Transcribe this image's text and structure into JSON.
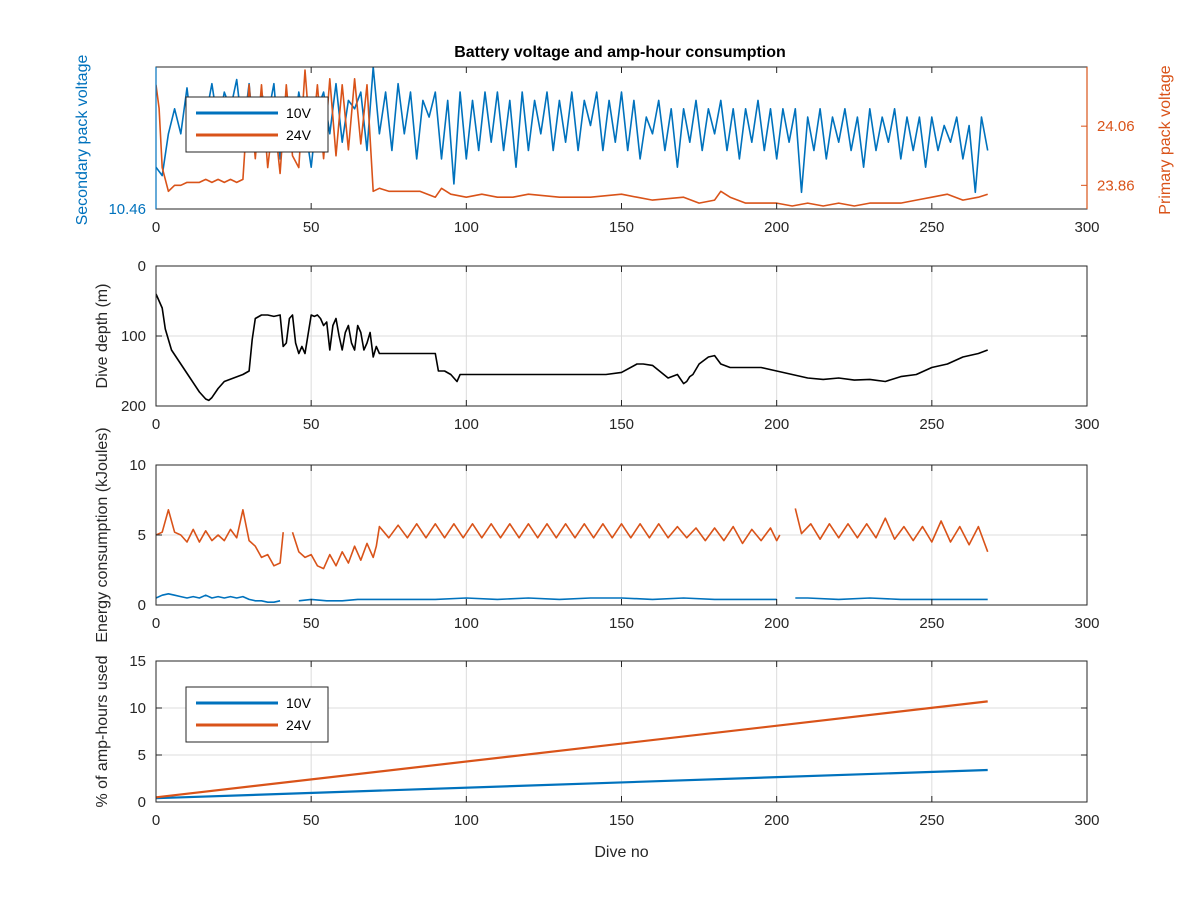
{
  "colors": {
    "c10": "#0072BD",
    "c24": "#D95319",
    "depth": "#000000",
    "axis": "#262626",
    "grid": "#dcdcdc"
  },
  "chart_data": [
    {
      "type": "line",
      "title": "Battery voltage and amp-hour consumption",
      "xlabel": "",
      "ylabel": "Secondary pack voltage",
      "ylabel_right": "Primary pack voltage",
      "xlim": [
        0,
        300
      ],
      "xticks": [
        "0",
        "50",
        "100",
        "150",
        "200",
        "250",
        "300"
      ],
      "yticks_left": [
        "10.46"
      ],
      "yticks_right": [
        "24.06",
        "23.86"
      ],
      "ylim_left": [
        10.46,
        10.8
      ],
      "ylim_right": [
        23.78,
        24.26
      ],
      "legend": {
        "placement": "top-left",
        "entries": [
          "10V",
          "24V"
        ]
      },
      "grid": false,
      "series": [
        {
          "name": "10V",
          "axis": "left",
          "color": "#0072BD",
          "x": [
            0,
            2,
            4,
            6,
            8,
            10,
            12,
            14,
            16,
            18,
            20,
            22,
            24,
            26,
            28,
            30,
            32,
            34,
            36,
            38,
            40,
            42,
            44,
            46,
            48,
            50,
            52,
            54,
            56,
            58,
            60,
            62,
            64,
            66,
            68,
            70,
            72,
            74,
            76,
            78,
            80,
            82,
            84,
            86,
            88,
            90,
            92,
            94,
            96,
            98,
            100,
            102,
            104,
            106,
            108,
            110,
            112,
            114,
            116,
            118,
            120,
            122,
            124,
            126,
            128,
            130,
            132,
            134,
            136,
            138,
            140,
            142,
            144,
            146,
            148,
            150,
            152,
            154,
            156,
            158,
            160,
            162,
            164,
            166,
            168,
            170,
            172,
            174,
            176,
            178,
            180,
            182,
            184,
            186,
            188,
            190,
            192,
            194,
            196,
            198,
            200,
            202,
            204,
            206,
            208,
            210,
            212,
            214,
            216,
            218,
            220,
            222,
            224,
            226,
            228,
            230,
            232,
            234,
            236,
            238,
            240,
            242,
            244,
            246,
            248,
            250,
            252,
            254,
            256,
            258,
            260,
            262,
            264,
            266,
            268
          ],
          "y": [
            10.56,
            10.54,
            10.64,
            10.7,
            10.64,
            10.75,
            10.62,
            10.72,
            10.68,
            10.76,
            10.66,
            10.74,
            10.7,
            10.77,
            10.64,
            10.76,
            10.6,
            10.74,
            10.68,
            10.76,
            10.58,
            10.72,
            10.62,
            10.74,
            10.66,
            10.56,
            10.7,
            10.74,
            10.64,
            10.76,
            10.62,
            10.72,
            10.7,
            10.74,
            10.6,
            10.8,
            10.64,
            10.74,
            10.6,
            10.76,
            10.64,
            10.74,
            10.58,
            10.72,
            10.68,
            10.74,
            10.58,
            10.72,
            10.52,
            10.74,
            10.58,
            10.72,
            10.6,
            10.74,
            10.62,
            10.74,
            10.6,
            10.72,
            10.56,
            10.74,
            10.6,
            10.72,
            10.64,
            10.74,
            10.6,
            10.72,
            10.62,
            10.74,
            10.6,
            10.72,
            10.66,
            10.74,
            10.6,
            10.72,
            10.62,
            10.74,
            10.6,
            10.72,
            10.58,
            10.68,
            10.64,
            10.72,
            10.6,
            10.7,
            10.56,
            10.7,
            10.62,
            10.72,
            10.6,
            10.7,
            10.64,
            10.72,
            10.6,
            10.7,
            10.58,
            10.7,
            10.62,
            10.72,
            10.6,
            10.7,
            10.58,
            10.7,
            10.62,
            10.7,
            10.5,
            10.68,
            10.6,
            10.7,
            10.58,
            10.68,
            10.62,
            10.7,
            10.6,
            10.68,
            10.56,
            10.7,
            10.6,
            10.68,
            10.62,
            10.7,
            10.58,
            10.68,
            10.6,
            10.68,
            10.56,
            10.68,
            10.6,
            10.66,
            10.62,
            10.68,
            10.58,
            10.66,
            10.5,
            10.68,
            10.6
          ]
        },
        {
          "name": "24V",
          "axis": "right",
          "color": "#D95319",
          "x": [
            0,
            1,
            2,
            4,
            6,
            8,
            10,
            12,
            14,
            16,
            18,
            20,
            22,
            24,
            26,
            28,
            30,
            32,
            34,
            36,
            38,
            40,
            42,
            44,
            46,
            48,
            50,
            52,
            54,
            56,
            58,
            60,
            62,
            64,
            66,
            68,
            70,
            72,
            75,
            80,
            85,
            90,
            92,
            95,
            100,
            105,
            110,
            115,
            120,
            130,
            140,
            150,
            155,
            160,
            170,
            175,
            180,
            182,
            185,
            190,
            195,
            200,
            205,
            210,
            215,
            220,
            225,
            230,
            235,
            240,
            245,
            250,
            255,
            260,
            265,
            268
          ],
          "y": [
            24.2,
            24.12,
            23.92,
            23.84,
            23.86,
            23.86,
            23.87,
            23.87,
            23.87,
            23.88,
            23.87,
            23.88,
            23.87,
            23.88,
            23.87,
            23.88,
            24.2,
            23.95,
            24.2,
            23.92,
            24.1,
            23.9,
            24.2,
            23.96,
            23.92,
            24.25,
            23.98,
            24.2,
            23.95,
            24.22,
            23.96,
            24.2,
            23.98,
            24.22,
            24.0,
            24.2,
            23.84,
            23.85,
            23.84,
            23.84,
            23.84,
            23.82,
            23.85,
            23.83,
            23.82,
            23.83,
            23.82,
            23.82,
            23.83,
            23.82,
            23.82,
            23.83,
            23.82,
            23.81,
            23.82,
            23.8,
            23.81,
            23.84,
            23.82,
            23.8,
            23.8,
            23.8,
            23.79,
            23.8,
            23.79,
            23.8,
            23.79,
            23.8,
            23.8,
            23.8,
            23.81,
            23.82,
            23.83,
            23.81,
            23.82,
            23.83
          ]
        }
      ]
    },
    {
      "type": "line",
      "title": "",
      "xlabel": "",
      "ylabel": "Dive depth (m)",
      "xlim": [
        0,
        300
      ],
      "ylim": [
        0,
        200
      ],
      "y_reversed": true,
      "xticks": [
        "0",
        "50",
        "100",
        "150",
        "200",
        "250",
        "300"
      ],
      "yticks": [
        "0",
        "100",
        "200"
      ],
      "grid": true,
      "series": [
        {
          "name": "",
          "color": "#000000",
          "x": [
            0,
            1,
            2,
            3,
            5,
            8,
            11,
            14,
            16,
            17,
            18,
            20,
            22,
            25,
            28,
            30,
            31,
            32,
            34,
            36,
            38,
            40,
            41,
            42,
            43,
            44,
            45,
            46,
            47,
            48,
            50,
            51,
            52,
            53,
            54,
            55,
            56,
            57,
            58,
            59,
            60,
            61,
            62,
            63,
            64,
            65,
            66,
            67,
            68,
            69,
            70,
            71,
            72,
            75,
            80,
            85,
            90,
            91,
            92,
            93,
            95,
            97,
            98,
            100,
            105,
            110,
            115,
            120,
            125,
            130,
            135,
            140,
            145,
            150,
            155,
            157,
            160,
            165,
            168,
            170,
            171,
            172,
            173,
            175,
            178,
            180,
            182,
            185,
            190,
            195,
            200,
            205,
            210,
            215,
            220,
            225,
            230,
            235,
            240,
            245,
            250,
            255,
            260,
            265,
            268
          ],
          "y": [
            40,
            50,
            60,
            90,
            120,
            140,
            160,
            180,
            190,
            192,
            188,
            175,
            165,
            160,
            155,
            150,
            105,
            75,
            70,
            70,
            72,
            70,
            115,
            110,
            75,
            70,
            110,
            125,
            115,
            125,
            70,
            72,
            70,
            75,
            85,
            80,
            120,
            85,
            75,
            100,
            120,
            95,
            85,
            110,
            120,
            85,
            95,
            120,
            110,
            95,
            130,
            115,
            125,
            125,
            125,
            125,
            125,
            150,
            150,
            150,
            155,
            165,
            155,
            155,
            155,
            155,
            155,
            155,
            155,
            155,
            155,
            155,
            155,
            152,
            140,
            140,
            142,
            160,
            155,
            168,
            165,
            158,
            155,
            140,
            130,
            128,
            140,
            145,
            145,
            145,
            150,
            155,
            160,
            162,
            160,
            163,
            162,
            165,
            158,
            155,
            145,
            140,
            130,
            125,
            120
          ]
        }
      ]
    },
    {
      "type": "line",
      "title": "",
      "xlabel": "",
      "ylabel": "Energy consumption (kJoules)",
      "xlim": [
        0,
        300
      ],
      "ylim": [
        0,
        10
      ],
      "xticks": [
        "0",
        "50",
        "100",
        "150",
        "200",
        "250",
        "300"
      ],
      "yticks": [
        "0",
        "5",
        "10"
      ],
      "grid": true,
      "series": [
        {
          "name": "24V",
          "color": "#D95319",
          "x": [
            0,
            2,
            4,
            6,
            8,
            10,
            12,
            14,
            16,
            18,
            20,
            22,
            24,
            26,
            28,
            30,
            32,
            34,
            36,
            38,
            40,
            41,
            42,
            44,
            46,
            48,
            50,
            52,
            54,
            56,
            58,
            60,
            62,
            64,
            66,
            68,
            70,
            71,
            72,
            75,
            78,
            81,
            84,
            87,
            90,
            93,
            96,
            99,
            102,
            105,
            108,
            111,
            114,
            117,
            120,
            123,
            126,
            129,
            132,
            135,
            138,
            141,
            144,
            147,
            150,
            153,
            156,
            159,
            162,
            165,
            168,
            171,
            174,
            177,
            180,
            183,
            186,
            189,
            192,
            195,
            198,
            200,
            201,
            205,
            206,
            208,
            211,
            214,
            217,
            220,
            223,
            226,
            229,
            232,
            235,
            238,
            241,
            244,
            247,
            250,
            253,
            256,
            259,
            262,
            265,
            268
          ],
          "y": [
            5.0,
            5.2,
            6.8,
            5.2,
            5.0,
            4.5,
            5.4,
            4.5,
            5.3,
            4.6,
            5.0,
            4.6,
            5.4,
            4.8,
            6.8,
            4.6,
            4.2,
            3.4,
            3.6,
            2.8,
            3.0,
            5.2,
            null,
            5.2,
            3.8,
            3.4,
            3.6,
            2.8,
            2.6,
            3.6,
            2.8,
            3.8,
            3.0,
            4.2,
            3.2,
            4.4,
            3.4,
            4.2,
            5.6,
            4.8,
            5.7,
            4.8,
            5.8,
            4.8,
            5.8,
            4.8,
            5.8,
            4.8,
            5.8,
            4.8,
            5.8,
            4.8,
            5.8,
            4.8,
            5.8,
            4.8,
            5.8,
            4.8,
            5.8,
            4.8,
            5.8,
            4.8,
            5.8,
            4.8,
            5.8,
            4.8,
            5.8,
            4.8,
            5.8,
            4.8,
            5.6,
            4.8,
            5.5,
            4.6,
            5.5,
            4.6,
            5.6,
            4.4,
            5.4,
            4.6,
            5.5,
            4.6,
            5.0,
            null,
            6.9,
            5.1,
            5.8,
            4.7,
            5.8,
            4.8,
            5.8,
            4.8,
            5.8,
            4.8,
            6.2,
            4.7,
            5.6,
            4.6,
            5.6,
            4.5,
            6.0,
            4.5,
            5.6,
            4.3,
            5.6,
            3.8
          ]
        },
        {
          "name": "10V",
          "color": "#0072BD",
          "x": [
            0,
            2,
            4,
            6,
            8,
            10,
            12,
            14,
            16,
            18,
            20,
            22,
            24,
            26,
            28,
            30,
            32,
            34,
            36,
            38,
            40,
            41,
            42,
            44,
            46,
            50,
            55,
            60,
            65,
            70,
            80,
            90,
            100,
            110,
            120,
            130,
            140,
            150,
            160,
            170,
            180,
            190,
            200,
            201,
            205,
            206,
            210,
            220,
            230,
            240,
            250,
            260,
            268
          ],
          "y": [
            0.5,
            0.7,
            0.8,
            0.7,
            0.6,
            0.5,
            0.6,
            0.5,
            0.7,
            0.5,
            0.6,
            0.5,
            0.6,
            0.5,
            0.6,
            0.4,
            0.3,
            0.3,
            0.2,
            0.2,
            0.3,
            null,
            null,
            null,
            0.3,
            0.4,
            0.3,
            0.3,
            0.4,
            0.4,
            0.4,
            0.4,
            0.5,
            0.4,
            0.5,
            0.4,
            0.5,
            0.5,
            0.4,
            0.5,
            0.4,
            0.4,
            0.4,
            null,
            null,
            0.5,
            0.5,
            0.4,
            0.5,
            0.4,
            0.4,
            0.4,
            0.4
          ]
        }
      ]
    },
    {
      "type": "line",
      "title": "",
      "xlabel": "Dive no",
      "ylabel": "% of amp-hours used",
      "xlim": [
        0,
        300
      ],
      "ylim": [
        0,
        15
      ],
      "xticks": [
        "0",
        "50",
        "100",
        "150",
        "200",
        "250",
        "300"
      ],
      "yticks": [
        "0",
        "5",
        "10",
        "15"
      ],
      "grid": true,
      "legend": {
        "placement": "top-left",
        "entries": [
          "10V",
          "24V"
        ]
      },
      "series": [
        {
          "name": "10V",
          "color": "#0072BD",
          "x": [
            0,
            268
          ],
          "y": [
            0.4,
            3.4
          ]
        },
        {
          "name": "24V",
          "color": "#D95319",
          "x": [
            0,
            268
          ],
          "y": [
            0.5,
            10.7
          ]
        }
      ]
    }
  ]
}
